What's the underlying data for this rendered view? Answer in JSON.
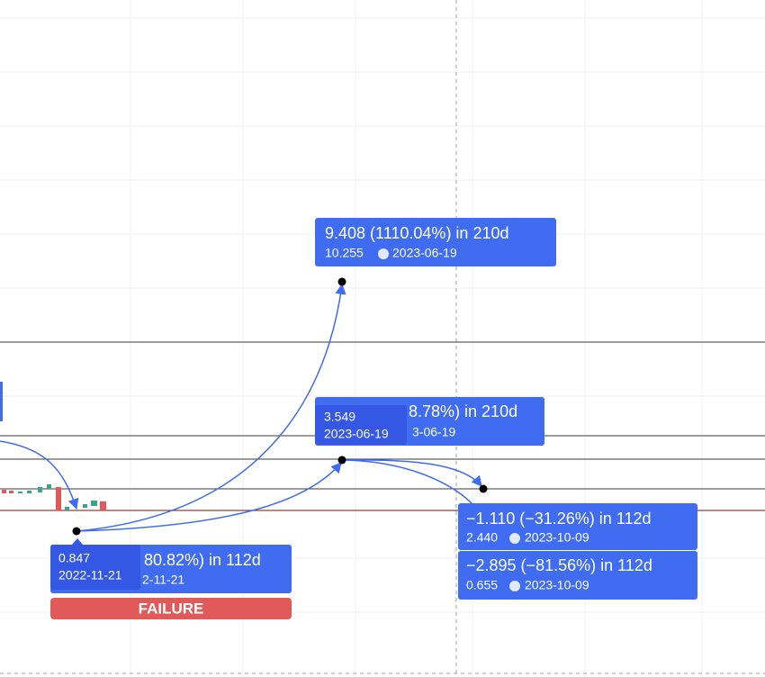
{
  "labels": {
    "target": {
      "line1": "9.408 (1110.04%) in 210d",
      "price": "10.255",
      "date": "2023-06-19"
    },
    "entry_back": {
      "line1": "8.78%) in 210d",
      "date": "3-06-19"
    },
    "entry": {
      "price": "3.549",
      "date": "2023-06-19"
    },
    "stop_back": {
      "line1": "80.82%) in 112d",
      "date": "2-11-21"
    },
    "stop": {
      "price": "0.847",
      "date": "2022-11-21"
    },
    "status": "FAILURE",
    "right_upper": {
      "line1": "−1.110 (−31.26%) in 112d",
      "price": "2.440",
      "date": "2023-10-09"
    },
    "right_lower": {
      "line1": "−2.895 (−81.56%) in 112d",
      "price": "0.655",
      "date": "2023-10-09"
    }
  }
}
